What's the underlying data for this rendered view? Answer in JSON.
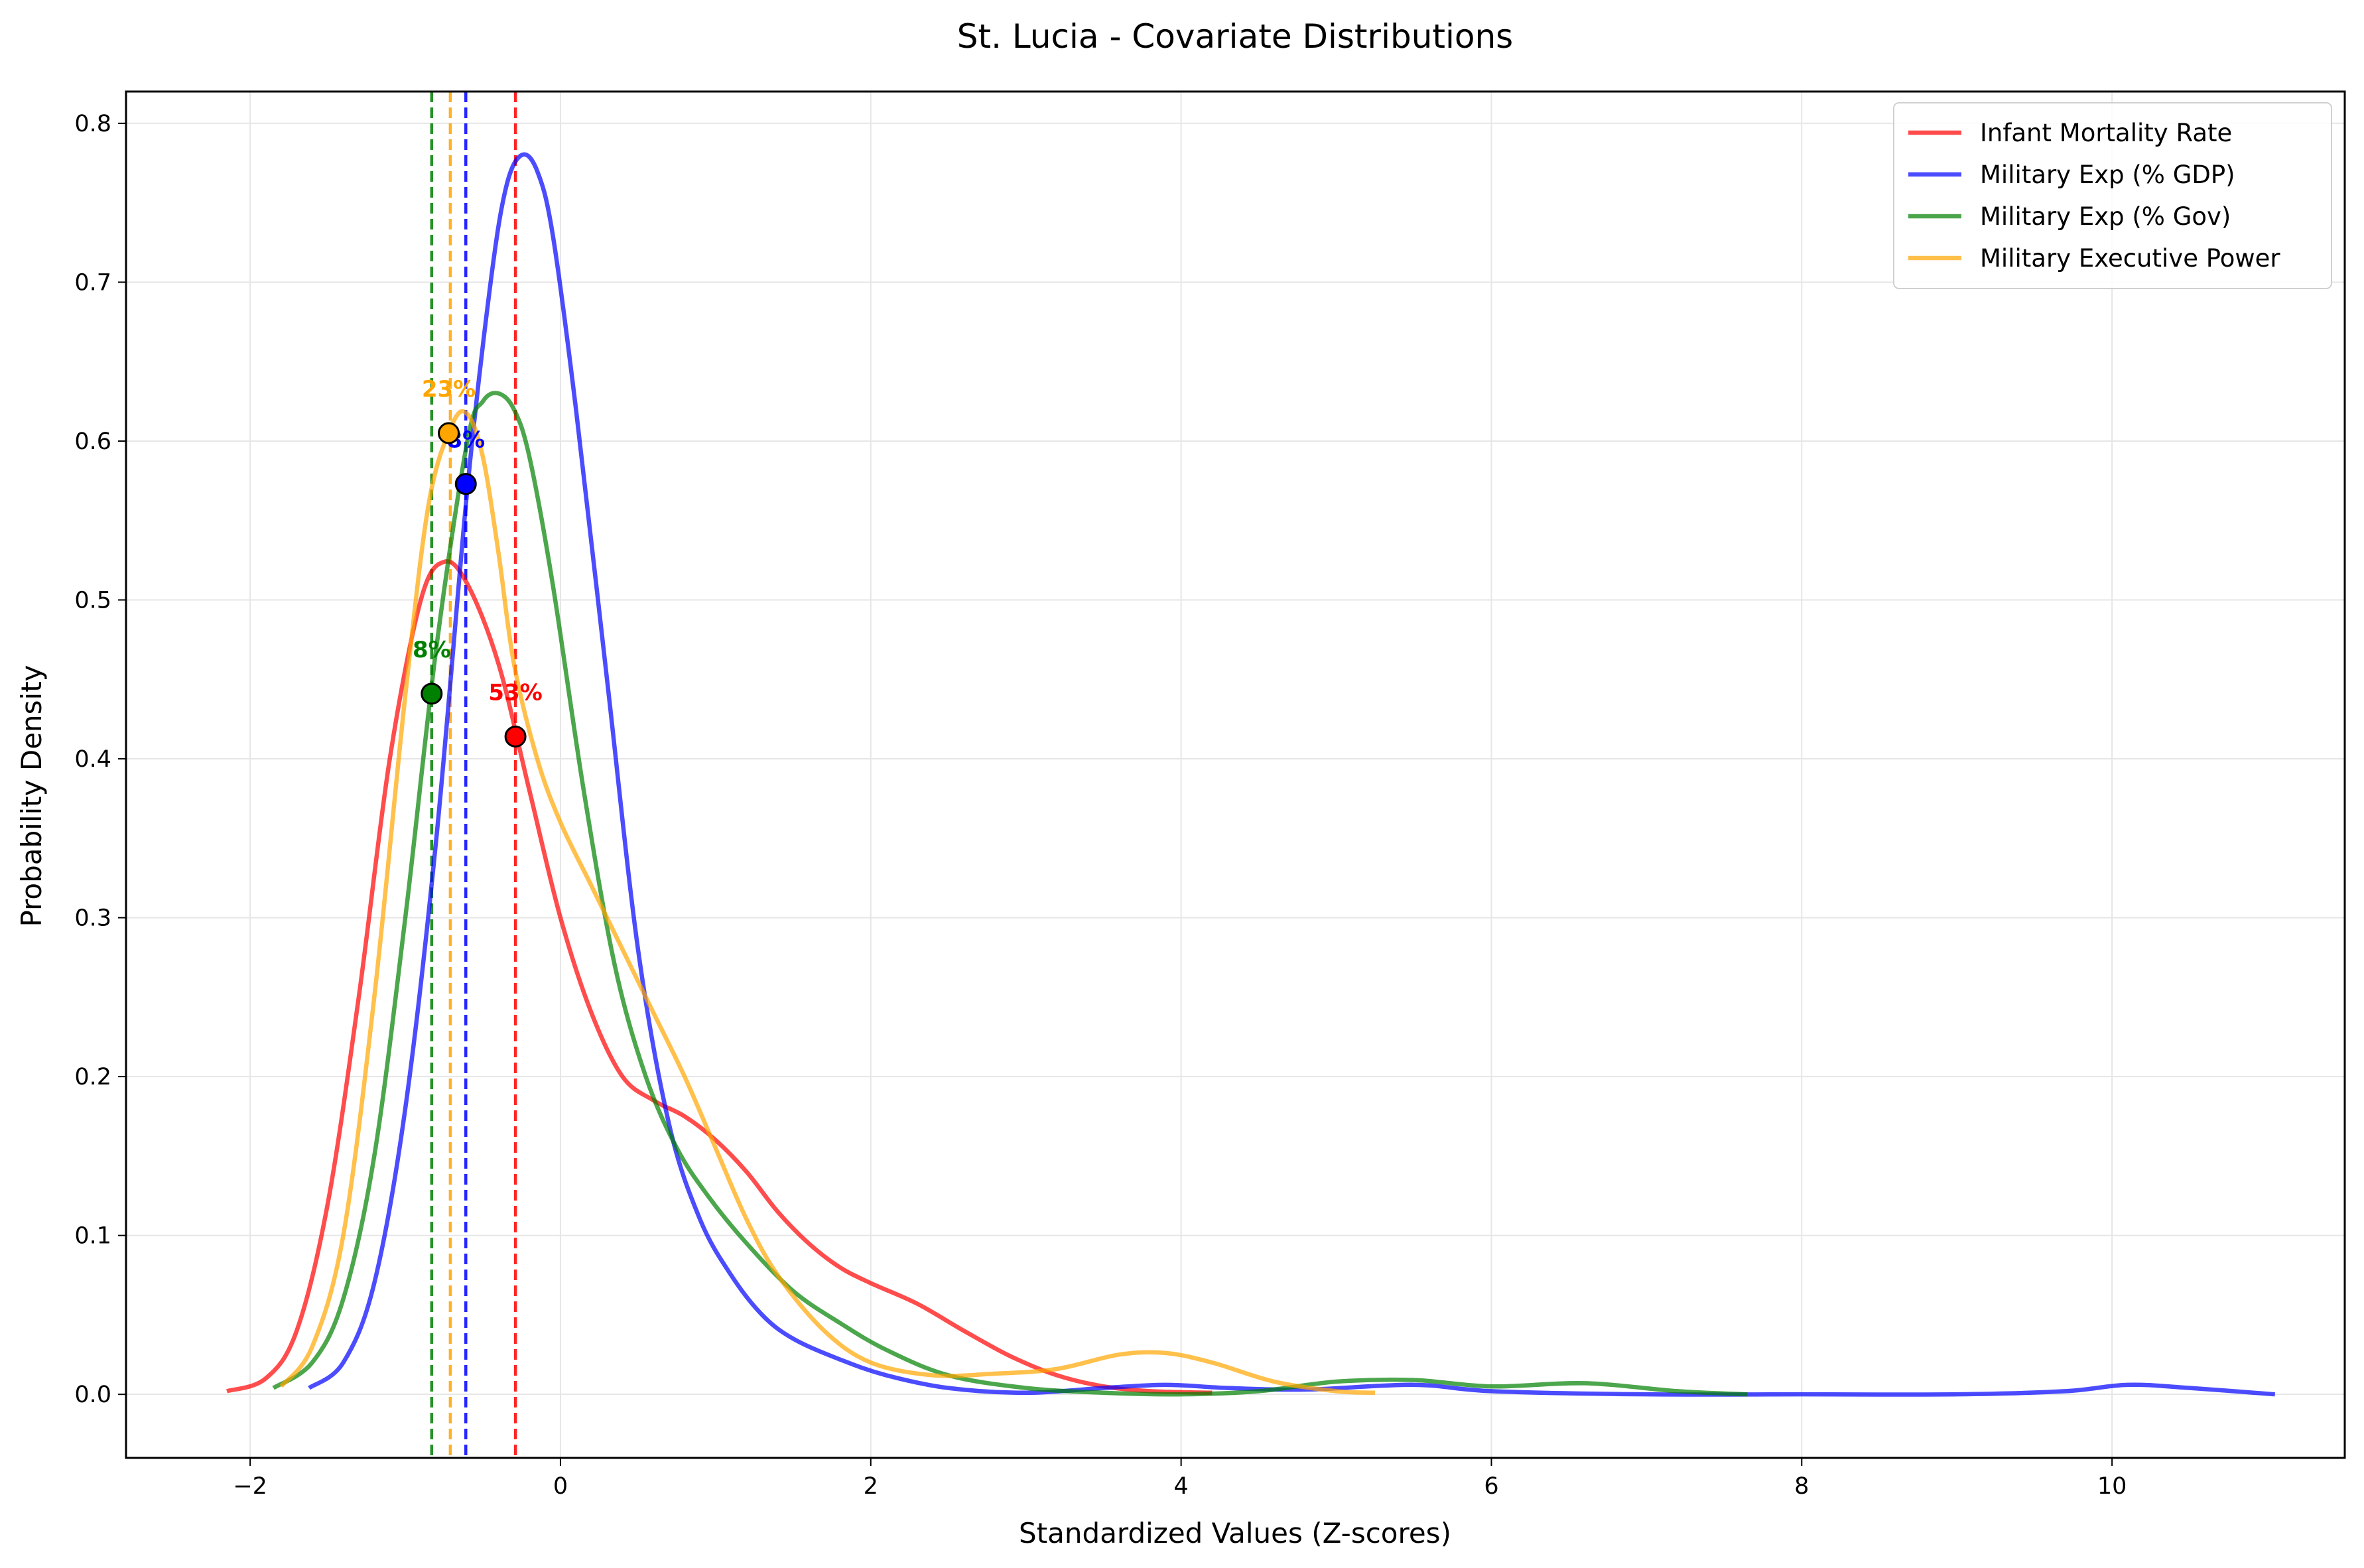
{
  "chart_data": {
    "type": "line",
    "title": "St. Lucia - Covariate Distributions",
    "xlabel": "Standardized Values (Z-scores)",
    "ylabel": "Probability Density",
    "xlim": [
      -2.8,
      11.5
    ],
    "ylim": [
      -0.04,
      0.82
    ],
    "xticks": [
      -2,
      0,
      2,
      4,
      6,
      8,
      10
    ],
    "xtick_labels": [
      "−2",
      "0",
      "2",
      "4",
      "6",
      "8",
      "10"
    ],
    "yticks": [
      0.0,
      0.1,
      0.2,
      0.3,
      0.4,
      0.5,
      0.6,
      0.7,
      0.8
    ],
    "ytick_labels": [
      "0.0",
      "0.1",
      "0.2",
      "0.3",
      "0.4",
      "0.5",
      "0.6",
      "0.7",
      "0.8"
    ],
    "grid": true,
    "legend_position": "top-right",
    "series": [
      {
        "name": "Infant Mortality Rate",
        "color": "#ff0000",
        "x": [
          -2.15,
          -1.9,
          -1.7,
          -1.5,
          -1.3,
          -1.1,
          -0.9,
          -0.75,
          -0.6,
          -0.4,
          -0.2,
          0.0,
          0.2,
          0.4,
          0.6,
          0.8,
          1.0,
          1.2,
          1.4,
          1.6,
          1.8,
          2.0,
          2.3,
          2.6,
          2.9,
          3.2,
          3.5,
          3.8,
          4.2
        ],
        "y": [
          0.002,
          0.01,
          0.04,
          0.12,
          0.25,
          0.4,
          0.5,
          0.524,
          0.51,
          0.46,
          0.38,
          0.3,
          0.24,
          0.2,
          0.185,
          0.175,
          0.16,
          0.14,
          0.115,
          0.095,
          0.08,
          0.07,
          0.057,
          0.04,
          0.024,
          0.012,
          0.005,
          0.002,
          0.001
        ],
        "marker": {
          "x": -0.29,
          "y": 0.414,
          "label": "53%"
        }
      },
      {
        "name": "Military Exp (% GDP)",
        "color": "#0000ff",
        "x": [
          -1.62,
          -1.4,
          -1.2,
          -1.0,
          -0.8,
          -0.6,
          -0.45,
          -0.35,
          -0.25,
          -0.15,
          -0.05,
          0.1,
          0.3,
          0.5,
          0.7,
          0.9,
          1.1,
          1.3,
          1.5,
          1.8,
          2.1,
          2.5,
          3.0,
          3.5,
          3.9,
          4.3,
          4.8,
          5.5,
          6.0,
          7.0,
          8.0,
          9.0,
          9.7,
          10.1,
          10.5,
          11.05
        ],
        "y": [
          0.004,
          0.02,
          0.07,
          0.18,
          0.35,
          0.57,
          0.7,
          0.76,
          0.78,
          0.77,
          0.73,
          0.62,
          0.45,
          0.28,
          0.17,
          0.11,
          0.075,
          0.05,
          0.035,
          0.022,
          0.012,
          0.004,
          0.001,
          0.004,
          0.006,
          0.004,
          0.003,
          0.006,
          0.002,
          0.0,
          0.0,
          0.0,
          0.002,
          0.006,
          0.004,
          0.0
        ],
        "marker": {
          "x": -0.61,
          "y": 0.573,
          "label": "8%"
        }
      },
      {
        "name": "Military Exp (% Gov)",
        "color": "#008000",
        "x": [
          -1.85,
          -1.6,
          -1.4,
          -1.2,
          -1.0,
          -0.8,
          -0.6,
          -0.5,
          -0.4,
          -0.3,
          -0.2,
          -0.05,
          0.15,
          0.35,
          0.55,
          0.75,
          0.95,
          1.2,
          1.5,
          1.8,
          2.1,
          2.5,
          3.0,
          3.5,
          4.0,
          4.5,
          5.0,
          5.5,
          6.0,
          6.6,
          7.2,
          7.65
        ],
        "y": [
          0.004,
          0.02,
          0.06,
          0.15,
          0.3,
          0.47,
          0.6,
          0.625,
          0.63,
          0.62,
          0.59,
          0.51,
          0.38,
          0.27,
          0.2,
          0.155,
          0.125,
          0.095,
          0.065,
          0.045,
          0.028,
          0.012,
          0.004,
          0.001,
          0.0,
          0.002,
          0.008,
          0.009,
          0.005,
          0.007,
          0.002,
          0.0
        ]
      },
      {
        "name": "Military Executive Power",
        "color": "#ffa500",
        "x": [
          -1.8,
          -1.6,
          -1.4,
          -1.2,
          -1.0,
          -0.85,
          -0.7,
          -0.6,
          -0.5,
          -0.4,
          -0.3,
          -0.15,
          0.0,
          0.2,
          0.4,
          0.6,
          0.8,
          1.0,
          1.2,
          1.4,
          1.7,
          2.0,
          2.4,
          2.8,
          3.2,
          3.6,
          3.9,
          4.2,
          4.6,
          5.0,
          5.25
        ],
        "y": [
          0.005,
          0.03,
          0.1,
          0.25,
          0.44,
          0.56,
          0.61,
          0.617,
          0.59,
          0.53,
          0.46,
          0.4,
          0.36,
          0.32,
          0.28,
          0.24,
          0.2,
          0.155,
          0.11,
          0.075,
          0.04,
          0.02,
          0.012,
          0.013,
          0.016,
          0.025,
          0.026,
          0.02,
          0.008,
          0.002,
          0.001
        ],
        "marker": {
          "x": -0.72,
          "y": 0.605,
          "label": "23%"
        }
      }
    ],
    "vlines": [
      {
        "x": -0.29,
        "color": "#ff0000",
        "series": "Infant Mortality Rate"
      },
      {
        "x": -0.61,
        "color": "#0000ff",
        "series": "Military Exp (% GDP)"
      },
      {
        "x": -0.83,
        "color": "#008000",
        "series": "Military Exp (% Gov)"
      },
      {
        "x": -0.71,
        "color": "#ffa500",
        "series": "Military Executive Power"
      }
    ],
    "green_marker": {
      "x": -0.83,
      "y": 0.441,
      "label": "8%"
    }
  }
}
